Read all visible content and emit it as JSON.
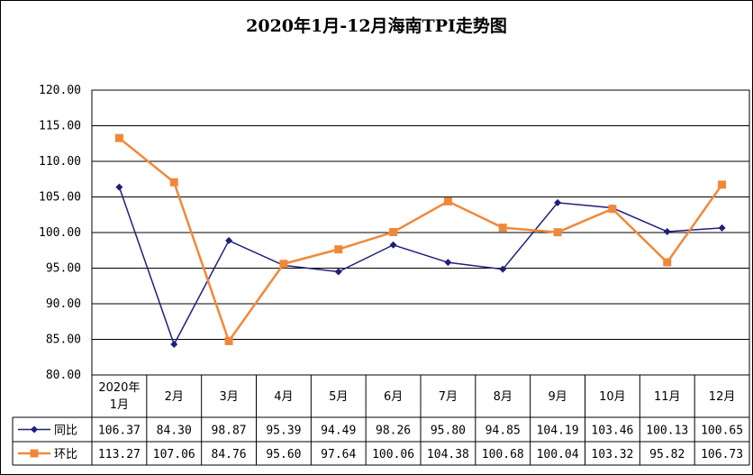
{
  "chart_data": {
    "type": "line",
    "title": "2020年1月-12月海南TPI走势图",
    "categories": [
      "2020年1月",
      "2月",
      "3月",
      "4月",
      "5月",
      "6月",
      "7月",
      "8月",
      "9月",
      "10月",
      "11月",
      "12月"
    ],
    "series": [
      {
        "name": "同比",
        "color": "#1f1f7a",
        "marker": "diamond",
        "values": [
          106.37,
          84.3,
          98.87,
          95.39,
          94.49,
          98.26,
          95.8,
          94.85,
          104.19,
          103.46,
          100.13,
          100.65
        ],
        "labels": [
          "106.37",
          "84.30",
          "98.87",
          "95.39",
          "94.49",
          "98.26",
          "95.80",
          "94.85",
          "104.19",
          "103.46",
          "100.13",
          "100.65"
        ]
      },
      {
        "name": "环比",
        "color": "#f0883a",
        "marker": "square",
        "values": [
          113.27,
          107.06,
          84.76,
          95.6,
          97.64,
          100.06,
          104.38,
          100.68,
          100.04,
          103.32,
          95.82,
          106.73
        ],
        "labels": [
          "113.27",
          "107.06",
          "84.76",
          "95.60",
          "97.64",
          "100.06",
          "104.38",
          "100.68",
          "100.04",
          "103.32",
          "95.82",
          "106.73"
        ]
      }
    ],
    "ylim": [
      80,
      120
    ],
    "yticks": [
      "80.00",
      "85.00",
      "90.00",
      "95.00",
      "100.00",
      "105.00",
      "110.00",
      "115.00",
      "120.00"
    ],
    "grid": true,
    "legend": "data-table"
  }
}
